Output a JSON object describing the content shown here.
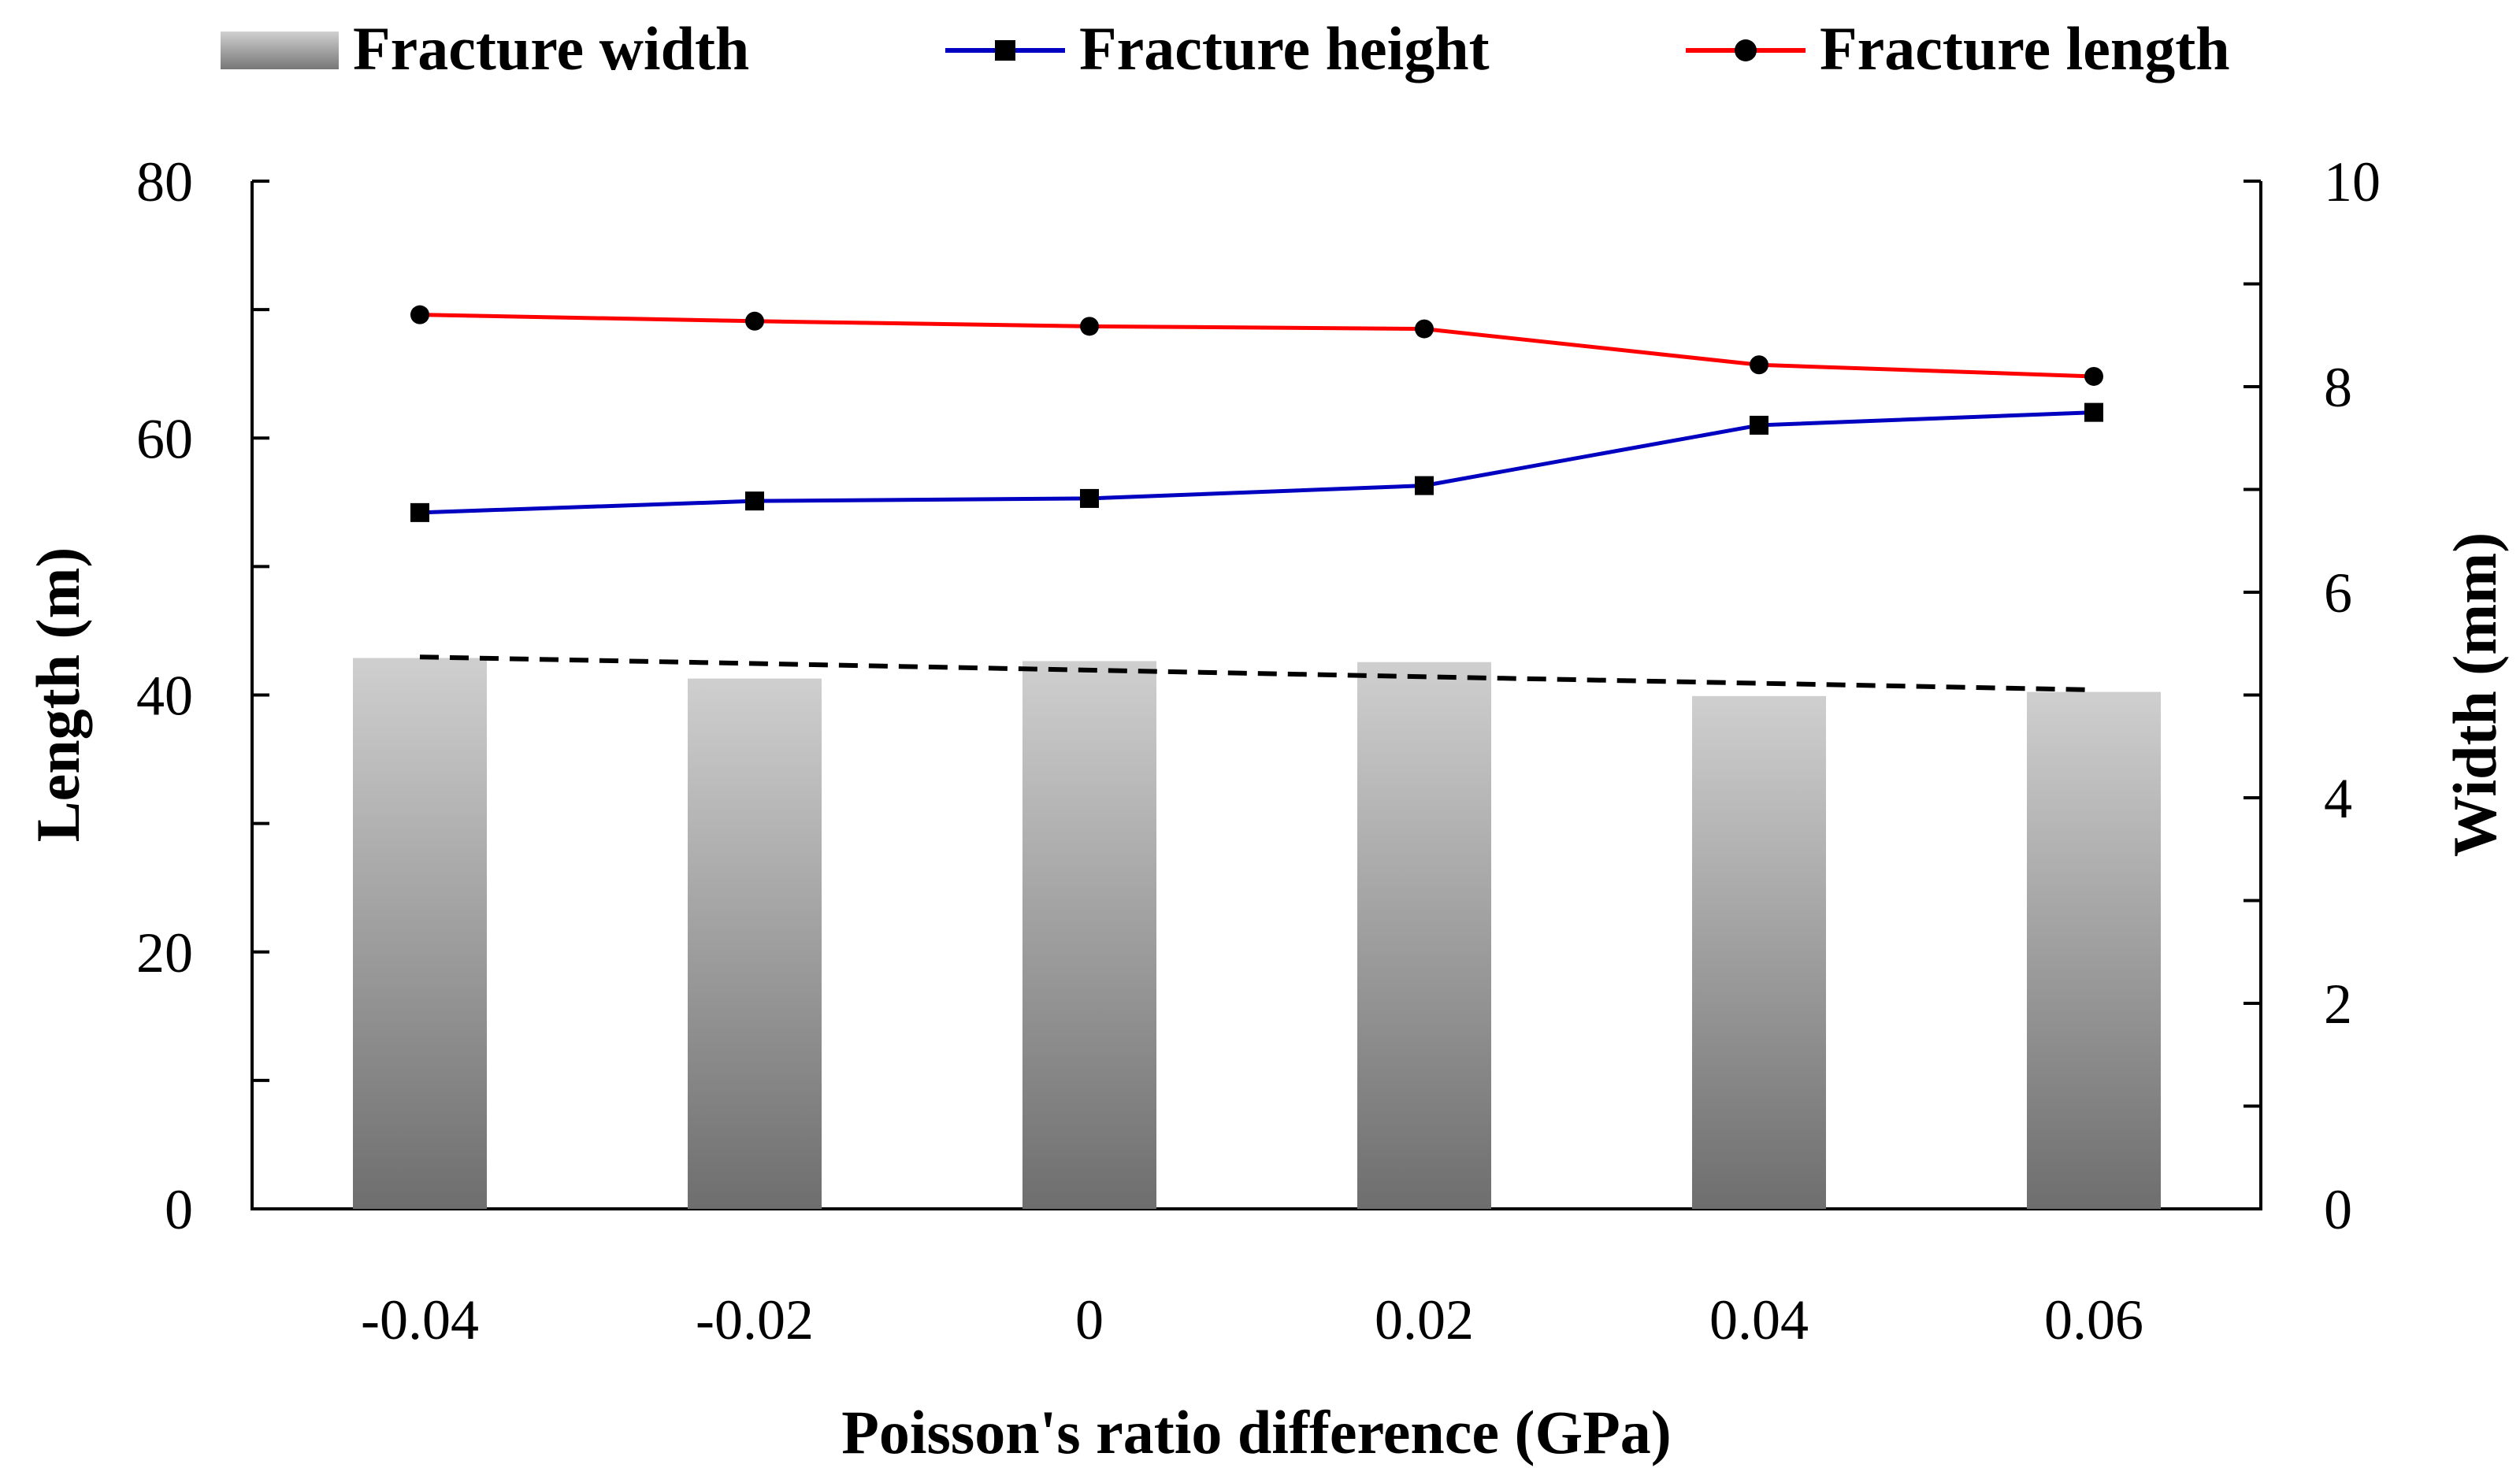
{
  "chart_data": {
    "type": "bar",
    "title": "",
    "categories": [
      "-0.04",
      "-0.02",
      "0",
      "0.02",
      "0.04",
      "0.06"
    ],
    "xlabel": "Poisson's ratio difference (GPa)",
    "ylabel_left": "Length (m)",
    "ylabel_right": "Width (mm)",
    "ylim_left": [
      0,
      80
    ],
    "ylim_right": [
      0,
      10
    ],
    "yticks_left": [
      "0",
      "20",
      "40",
      "60",
      "80"
    ],
    "yticks_right": [
      "0",
      "2",
      "4",
      "6",
      "8",
      "10"
    ],
    "legend_position": "top",
    "series": [
      {
        "name": "Fracture width",
        "kind": "bar",
        "axis": "right",
        "color": "#8a8a8a",
        "values": [
          5.36,
          5.16,
          5.33,
          5.32,
          4.99,
          5.03
        ]
      },
      {
        "name": "Fracture height",
        "kind": "line",
        "axis": "left",
        "color": "#0000c0",
        "marker": "square",
        "values": [
          54.2,
          55.1,
          55.3,
          56.3,
          61.0,
          62.0
        ]
      },
      {
        "name": "Fracture length",
        "kind": "line",
        "axis": "left",
        "color": "#ff0000",
        "marker": "circle",
        "values": [
          69.6,
          69.1,
          68.7,
          68.5,
          65.7,
          64.8
        ]
      }
    ],
    "trendline": {
      "series": "Fracture width",
      "style": "dashed",
      "color": "#000000",
      "start": 5.37,
      "end": 5.05
    }
  }
}
